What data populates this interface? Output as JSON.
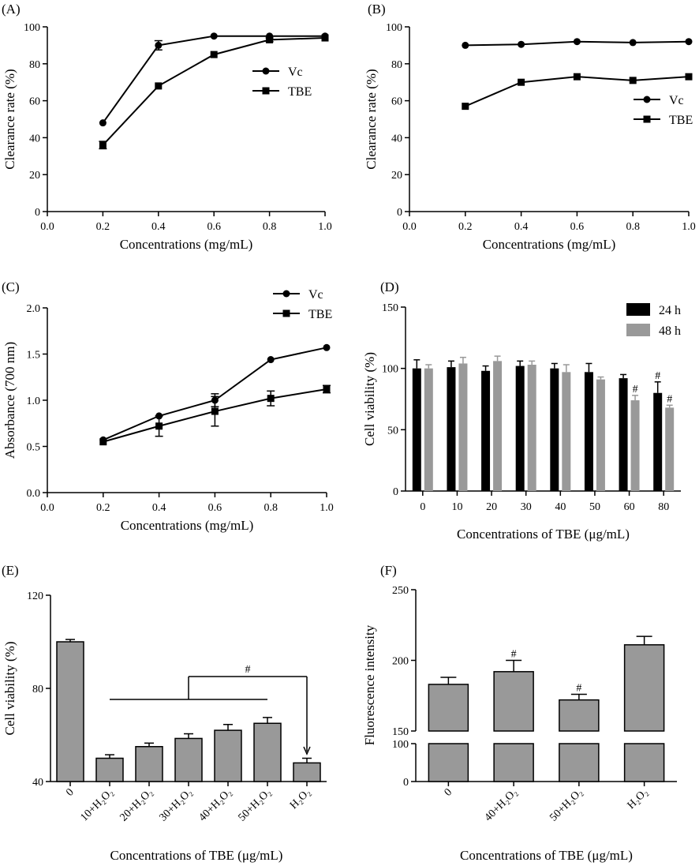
{
  "colors": {
    "black": "#000000",
    "gray_bar": "#999999",
    "white": "#ffffff"
  },
  "chart_data": [
    {
      "panel": "(A)",
      "type": "line",
      "xlabel": "Concentrations (mg/mL)",
      "ylabel": "Clearance rate (%)",
      "xlim": [
        0,
        1.0
      ],
      "ylim": [
        0,
        100
      ],
      "xticks": [
        "0.0",
        "0.2",
        "0.4",
        "0.6",
        "0.8",
        "1.0"
      ],
      "yticks": [
        "0",
        "20",
        "40",
        "60",
        "80",
        "100"
      ],
      "legend": "right",
      "series": [
        {
          "name": "Vc",
          "marker": "circle",
          "x": [
            0.2,
            0.4,
            0.6,
            0.8,
            1.0
          ],
          "y": [
            48,
            90,
            95,
            95,
            95
          ],
          "err": [
            0,
            2.5,
            0,
            0,
            0
          ]
        },
        {
          "name": "TBE",
          "marker": "square",
          "x": [
            0.2,
            0.4,
            0.6,
            0.8,
            1.0
          ],
          "y": [
            36,
            68,
            85,
            93,
            94
          ],
          "err": [
            2,
            0,
            0,
            1,
            0
          ]
        }
      ]
    },
    {
      "panel": "(B)",
      "type": "line",
      "xlabel": "Concentrations (mg/mL)",
      "ylabel": "Clearance rate (%)",
      "xlim": [
        0,
        1.0
      ],
      "ylim": [
        0,
        100
      ],
      "xticks": [
        "0.0",
        "0.2",
        "0.4",
        "0.6",
        "0.8",
        "1.0"
      ],
      "yticks": [
        "0",
        "20",
        "40",
        "60",
        "80",
        "100"
      ],
      "legend": "right",
      "series": [
        {
          "name": "Vc",
          "marker": "circle",
          "x": [
            0.2,
            0.4,
            0.6,
            0.8,
            1.0
          ],
          "y": [
            90,
            90.5,
            92,
            91.5,
            92
          ],
          "err": [
            0,
            0,
            0,
            0,
            0
          ]
        },
        {
          "name": "TBE",
          "marker": "square",
          "x": [
            0.2,
            0.4,
            0.6,
            0.8,
            1.0
          ],
          "y": [
            57,
            70,
            73,
            71,
            73
          ],
          "err": [
            0,
            0,
            0,
            0,
            0
          ]
        }
      ]
    },
    {
      "panel": "(C)",
      "type": "line",
      "xlabel": "Concentrations (mg/mL)",
      "ylabel": "Absorbance (700 nm)",
      "xlim": [
        0,
        1.0
      ],
      "ylim": [
        0,
        2.0
      ],
      "xticks": [
        "0.0",
        "0.2",
        "0.4",
        "0.6",
        "0.8",
        "1.0"
      ],
      "yticks": [
        "0.0",
        "0.5",
        "1.0",
        "1.5",
        "2.0"
      ],
      "legend": "top-right",
      "series": [
        {
          "name": "Vc",
          "marker": "circle",
          "x": [
            0.2,
            0.4,
            0.6,
            0.8,
            1.0
          ],
          "y": [
            0.57,
            0.83,
            1.0,
            1.44,
            1.57
          ],
          "err": [
            0,
            0,
            0.07,
            0,
            0
          ]
        },
        {
          "name": "TBE",
          "marker": "square",
          "x": [
            0.2,
            0.4,
            0.6,
            0.8,
            1.0
          ],
          "y": [
            0.55,
            0.72,
            0.88,
            1.02,
            1.12
          ],
          "err": [
            0,
            0.11,
            0.16,
            0.08,
            0.04
          ]
        }
      ]
    },
    {
      "panel": "(D)",
      "type": "bar",
      "xlabel": "Concentrations of TBE (μg/mL)",
      "ylabel": "Cell viability (%)",
      "ylim": [
        0,
        150
      ],
      "yticks": [
        "0",
        "50",
        "100",
        "150"
      ],
      "categories": [
        "0",
        "10",
        "20",
        "30",
        "40",
        "50",
        "60",
        "80"
      ],
      "legend": "top-right",
      "series": [
        {
          "name": "24 h",
          "color": "#000000",
          "values": [
            100,
            101,
            98,
            102,
            100,
            97,
            92,
            80
          ],
          "err": [
            7,
            5,
            4,
            4,
            4,
            7,
            3,
            9
          ],
          "marks": [
            "",
            "",
            "",
            "",
            "",
            "",
            "",
            "#"
          ]
        },
        {
          "name": "48 h",
          "color": "#999999",
          "values": [
            100,
            104,
            106,
            103,
            97,
            91,
            74,
            68
          ],
          "err": [
            3,
            5,
            4,
            3,
            6,
            2,
            4,
            2
          ],
          "marks": [
            "",
            "",
            "",
            "",
            "",
            "",
            "#",
            "#"
          ]
        }
      ]
    },
    {
      "panel": "(E)",
      "type": "bar",
      "xlabel": "Concentrations of TBE (μg/mL)",
      "ylabel": "Cell viability (%)",
      "ylim": [
        40,
        120
      ],
      "yticks": [
        "40",
        "80",
        "120"
      ],
      "categories": [
        "0",
        "10+H₂O₂",
        "20+H₂O₂",
        "30+H₂O₂",
        "40+H₂O₂",
        "50+H₂O₂",
        "H₂O₂"
      ],
      "series": [
        {
          "name": "viability",
          "color": "#999999",
          "values": [
            100,
            50,
            55,
            58.5,
            62,
            65,
            48
          ],
          "err": [
            1,
            1.5,
            1.5,
            2,
            2.5,
            2.5,
            2
          ]
        }
      ],
      "annotation": "#"
    },
    {
      "panel": "(F)",
      "type": "bar",
      "xlabel": "Concentrations of TBE (μg/mL)",
      "ylabel": "Fluorescence intensity",
      "yticks": [
        "0",
        "100",
        "150",
        "200",
        "250"
      ],
      "axis_break": "between 100 and 150",
      "categories": [
        "0",
        "40+H₂O₂",
        "50+H₂O₂",
        "H₂O₂"
      ],
      "series": [
        {
          "name": "fluorescence",
          "color": "#999999",
          "values": [
            183,
            192,
            172,
            211
          ],
          "err": [
            5,
            8,
            4,
            6
          ],
          "marks": [
            "",
            "#",
            "#",
            ""
          ]
        }
      ]
    }
  ]
}
